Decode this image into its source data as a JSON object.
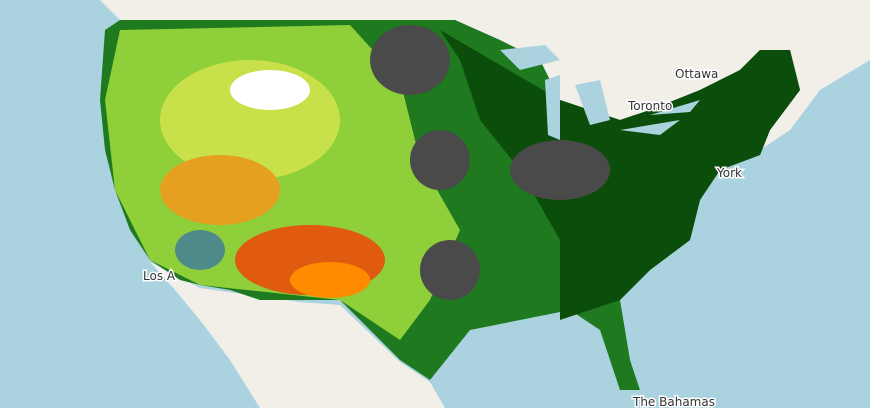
{
  "map": {
    "labels": [
      {
        "name": "Ottawa"
      },
      {
        "name": "Toronto"
      },
      {
        "name": "York"
      },
      {
        "name": "Los A"
      },
      {
        "name": "The Bahamas"
      }
    ]
  }
}
